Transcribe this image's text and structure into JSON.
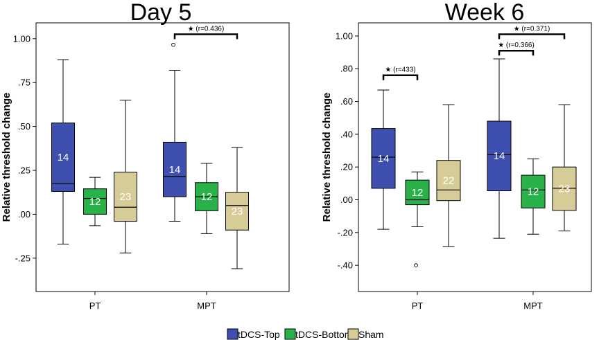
{
  "chart_data": [
    {
      "type": "box",
      "title": "Day 5",
      "ylabel": "Relative threshold change",
      "ylim": [
        -0.44,
        1.09
      ],
      "yticks": [
        -0.25,
        0.0,
        0.25,
        0.5,
        0.75,
        1.0
      ],
      "ytick_labels": [
        "-.25",
        ".00",
        ".25",
        ".50",
        ".75",
        "1.00"
      ],
      "categories": [
        "PT",
        "MPT"
      ],
      "series": [
        {
          "name": "tDCS-Top",
          "color": "#3f4fb0",
          "boxes": [
            {
              "category": "PT",
              "min": -0.17,
              "q1": 0.13,
              "median": 0.175,
              "q3": 0.52,
              "max": 0.88,
              "n": "14",
              "outliers": []
            },
            {
              "category": "MPT",
              "min": -0.04,
              "q1": 0.1,
              "median": 0.215,
              "q3": 0.41,
              "max": 0.82,
              "n": "14",
              "outliers": [
                0.965
              ]
            }
          ]
        },
        {
          "name": "tDCS-Bottom",
          "color": "#28b249",
          "boxes": [
            {
              "category": "PT",
              "min": -0.065,
              "q1": 0.0,
              "median": 0.09,
              "q3": 0.145,
              "max": 0.21,
              "n": "12",
              "outliers": []
            },
            {
              "category": "MPT",
              "min": -0.11,
              "q1": 0.02,
              "median": 0.1,
              "q3": 0.18,
              "max": 0.29,
              "n": "12",
              "outliers": []
            }
          ]
        },
        {
          "name": "Sham",
          "color": "#d6cc98",
          "boxes": [
            {
              "category": "PT",
              "min": -0.22,
              "q1": -0.04,
              "median": 0.04,
              "q3": 0.24,
              "max": 0.65,
              "n": "23",
              "outliers": []
            },
            {
              "category": "MPT",
              "min": -0.31,
              "q1": -0.09,
              "median": 0.05,
              "q3": 0.125,
              "max": 0.38,
              "n": "23",
              "outliers": []
            }
          ]
        }
      ],
      "significance": [
        {
          "category": "MPT",
          "from": "tDCS-Top",
          "to": "Sham",
          "y": 1.025,
          "label": "★ (r=0.436)"
        }
      ]
    },
    {
      "type": "box",
      "title": "Week 6",
      "ylabel": "Relative threshold change",
      "ylim": [
        -0.56,
        1.08
      ],
      "yticks": [
        -0.4,
        -0.2,
        0.0,
        0.2,
        0.4,
        0.6,
        0.8,
        1.0
      ],
      "ytick_labels": [
        "-.40",
        "-.20",
        ".00",
        ".20",
        ".40",
        ".60",
        ".80",
        "1.00"
      ],
      "categories": [
        "PT",
        "MPT"
      ],
      "series": [
        {
          "name": "tDCS-Top",
          "color": "#3f4fb0",
          "boxes": [
            {
              "category": "PT",
              "min": -0.18,
              "q1": 0.07,
              "median": 0.26,
              "q3": 0.435,
              "max": 0.67,
              "n": "14",
              "outliers": []
            },
            {
              "category": "MPT",
              "min": -0.235,
              "q1": 0.055,
              "median": 0.275,
              "q3": 0.48,
              "max": 0.86,
              "n": "14",
              "outliers": []
            }
          ]
        },
        {
          "name": "tDCS-Bottom",
          "color": "#28b249",
          "boxes": [
            {
              "category": "PT",
              "min": -0.165,
              "q1": -0.03,
              "median": 0.0,
              "q3": 0.12,
              "max": 0.17,
              "n": "12",
              "outliers": [
                -0.4
              ]
            },
            {
              "category": "MPT",
              "min": -0.21,
              "q1": -0.05,
              "median": 0.06,
              "q3": 0.15,
              "max": 0.25,
              "n": "12",
              "outliers": []
            }
          ]
        },
        {
          "name": "Sham",
          "color": "#d6cc98",
          "boxes": [
            {
              "category": "PT",
              "min": -0.285,
              "q1": -0.005,
              "median": 0.06,
              "q3": 0.24,
              "max": 0.58,
              "n": "22",
              "outliers": []
            },
            {
              "category": "MPT",
              "min": -0.19,
              "q1": -0.065,
              "median": 0.07,
              "q3": 0.2,
              "max": 0.58,
              "n": "23",
              "outliers": []
            }
          ]
        }
      ],
      "significance": [
        {
          "category": "PT",
          "from": "tDCS-Top",
          "to": "tDCS-Bottom",
          "y": 0.76,
          "label": "★ (r=433)"
        },
        {
          "category": "MPT",
          "from": "tDCS-Top",
          "to": "tDCS-Bottom",
          "y": 0.91,
          "label": "★ (r=0.366)"
        },
        {
          "category": "MPT",
          "from": "tDCS-Top",
          "to": "Sham",
          "y": 1.01,
          "label": "★ (r=0.371)"
        }
      ]
    }
  ],
  "legend": [
    {
      "label": "tDCS-Top",
      "color": "#3f4fb0"
    },
    {
      "label": "tDCS-Bottom",
      "color": "#28b249"
    },
    {
      "label": "Sham",
      "color": "#d6cc98"
    }
  ]
}
